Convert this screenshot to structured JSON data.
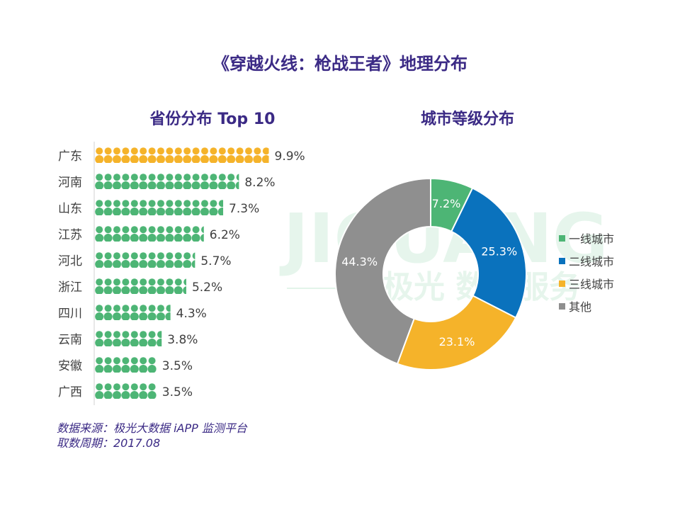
{
  "title": "《穿越火线：枪战王者》地理分布",
  "watermark": {
    "logo_text": "JIGUANG",
    "tagline": "极光 数据服务"
  },
  "colors": {
    "title": "#3b2a85",
    "green": "#4db575",
    "blue": "#0a72bd",
    "yellow": "#f5b32a",
    "gray": "#8f8f8f"
  },
  "chart_data": [
    {
      "type": "bar",
      "title": "省份分布 Top 10",
      "orientation": "horizontal",
      "mark": "person-icon pictograph",
      "categories": [
        "广东",
        "河南",
        "山东",
        "江苏",
        "河北",
        "浙江",
        "四川",
        "云南",
        "安徽",
        "广西"
      ],
      "values": [
        9.9,
        8.2,
        7.3,
        6.2,
        5.7,
        5.2,
        4.3,
        3.8,
        3.5,
        3.5
      ],
      "labels": [
        "9.9%",
        "8.2%",
        "7.3%",
        "6.2%",
        "5.7%",
        "5.2%",
        "4.3%",
        "3.8%",
        "3.5%",
        "3.5%"
      ],
      "highlight_index": 0,
      "unit": "%"
    },
    {
      "type": "pie",
      "donut": true,
      "title": "城市等级分布",
      "legend_position": "right",
      "slices": [
        {
          "name": "一线城市",
          "value": 7.2,
          "label": "7.2%",
          "color": "#4db575"
        },
        {
          "name": "二线城市",
          "value": 25.3,
          "label": "25.3%",
          "color": "#0a72bd"
        },
        {
          "name": "三线城市",
          "value": 23.1,
          "label": "23.1%",
          "color": "#f5b32a"
        },
        {
          "name": "其他",
          "value": 44.3,
          "label": "44.3%",
          "color": "#8f8f8f"
        }
      ]
    }
  ],
  "source": {
    "line1": "数据来源：极光大数据 iAPP 监测平台",
    "line2": "取数周期：2017.08"
  }
}
